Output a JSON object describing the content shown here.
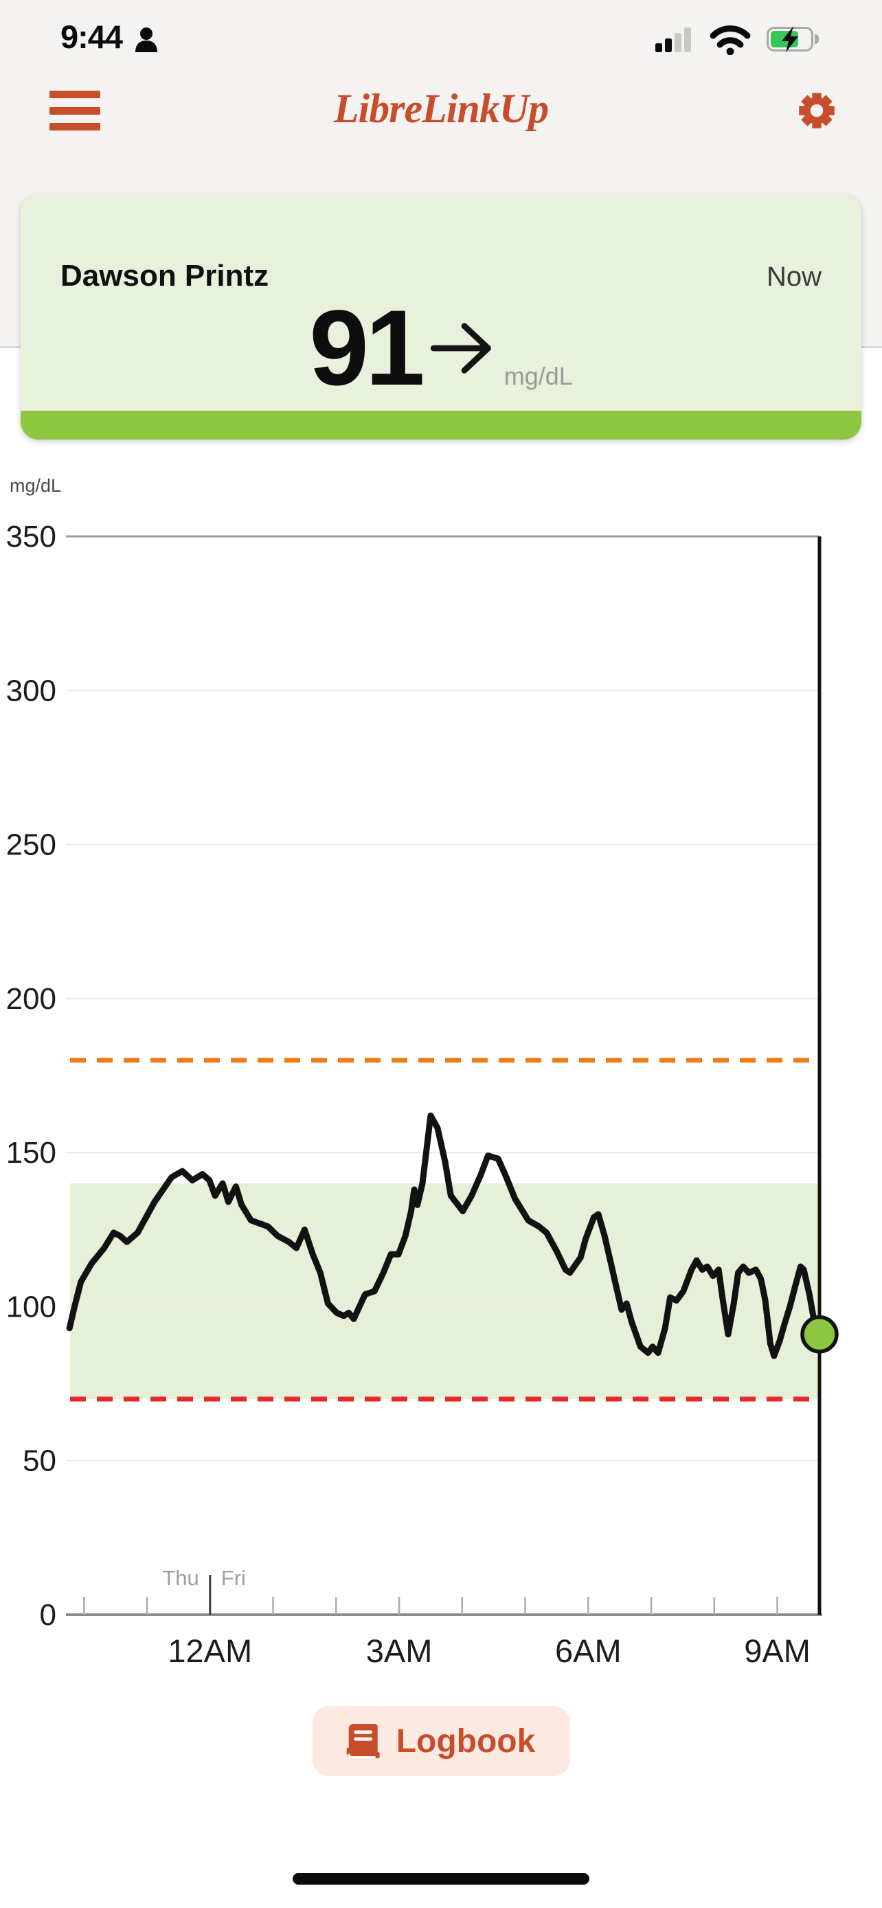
{
  "status_bar": {
    "time": "9:44",
    "signal_bars_filled": 2,
    "signal_bars_total": 4,
    "wifi": true,
    "battery_fill_percent": 72,
    "charging": true
  },
  "header": {
    "title": "LibreLinkUp"
  },
  "patient_card": {
    "name": "Dawson Printz",
    "timestamp_label": "Now",
    "glucose_value": "91",
    "glucose_unit": "mg/dL",
    "trend": "steady"
  },
  "chart_data": {
    "type": "line",
    "title": "12-hour glucose graph",
    "ylabel": "mg/dL",
    "ylim": [
      0,
      350
    ],
    "yticks": [
      0,
      50,
      100,
      150,
      200,
      250,
      300,
      350
    ],
    "grid": true,
    "legend_position": "none",
    "x_window_hours": 12,
    "x_ticks": [
      {
        "hour": 0.33
      },
      {
        "hour": 1.33
      },
      {
        "hour": 2.33,
        "label": "12AM",
        "day_boundary": true,
        "left_day": "Thu",
        "right_day": "Fri"
      },
      {
        "hour": 3.33
      },
      {
        "hour": 4.33
      },
      {
        "hour": 5.33,
        "label": "3AM"
      },
      {
        "hour": 6.33
      },
      {
        "hour": 7.33
      },
      {
        "hour": 8.33,
        "label": "6AM"
      },
      {
        "hour": 9.33
      },
      {
        "hour": 10.33
      },
      {
        "hour": 11.33,
        "label": "9AM"
      }
    ],
    "high_threshold": 180,
    "low_threshold": 70,
    "target_range": [
      70,
      140
    ],
    "now_line_hour": 12,
    "current": {
      "hour": 12,
      "value": 91
    },
    "series": [
      {
        "name": "glucose_mg_dl",
        "points": [
          [
            0.1,
            93
          ],
          [
            0.18,
            100
          ],
          [
            0.28,
            108
          ],
          [
            0.45,
            114
          ],
          [
            0.65,
            119
          ],
          [
            0.8,
            124
          ],
          [
            0.9,
            123
          ],
          [
            1.01,
            121
          ],
          [
            1.18,
            124
          ],
          [
            1.45,
            134
          ],
          [
            1.72,
            142
          ],
          [
            1.89,
            144
          ],
          [
            2.05,
            141
          ],
          [
            2.21,
            143
          ],
          [
            2.32,
            141
          ],
          [
            2.41,
            136
          ],
          [
            2.53,
            140
          ],
          [
            2.62,
            134
          ],
          [
            2.74,
            139
          ],
          [
            2.83,
            133
          ],
          [
            2.98,
            128
          ],
          [
            3.25,
            126
          ],
          [
            3.4,
            123
          ],
          [
            3.58,
            121
          ],
          [
            3.7,
            119
          ],
          [
            3.83,
            125
          ],
          [
            3.96,
            117
          ],
          [
            4.08,
            111
          ],
          [
            4.2,
            101
          ],
          [
            4.34,
            98
          ],
          [
            4.45,
            97
          ],
          [
            4.53,
            98
          ],
          [
            4.61,
            96
          ],
          [
            4.79,
            104
          ],
          [
            4.94,
            105
          ],
          [
            5.08,
            111
          ],
          [
            5.2,
            117
          ],
          [
            5.32,
            117
          ],
          [
            5.43,
            123
          ],
          [
            5.52,
            131
          ],
          [
            5.57,
            138
          ],
          [
            5.62,
            133
          ],
          [
            5.7,
            140
          ],
          [
            5.83,
            162
          ],
          [
            5.94,
            158
          ],
          [
            6.06,
            147
          ],
          [
            6.15,
            136
          ],
          [
            6.34,
            131
          ],
          [
            6.48,
            136
          ],
          [
            6.63,
            143
          ],
          [
            6.74,
            149
          ],
          [
            6.9,
            148
          ],
          [
            7.01,
            143
          ],
          [
            7.17,
            135
          ],
          [
            7.38,
            128
          ],
          [
            7.55,
            126
          ],
          [
            7.67,
            124
          ],
          [
            7.83,
            118
          ],
          [
            7.97,
            112
          ],
          [
            8.04,
            111
          ],
          [
            8.21,
            116
          ],
          [
            8.29,
            122
          ],
          [
            8.42,
            129
          ],
          [
            8.49,
            130
          ],
          [
            8.59,
            123
          ],
          [
            8.68,
            115
          ],
          [
            8.78,
            106
          ],
          [
            8.86,
            99
          ],
          [
            8.94,
            101
          ],
          [
            9.02,
            95
          ],
          [
            9.16,
            87
          ],
          [
            9.28,
            85
          ],
          [
            9.35,
            87
          ],
          [
            9.44,
            85
          ],
          [
            9.55,
            93
          ],
          [
            9.63,
            103
          ],
          [
            9.73,
            102
          ],
          [
            9.84,
            105
          ],
          [
            9.97,
            112
          ],
          [
            10.05,
            115
          ],
          [
            10.14,
            112
          ],
          [
            10.22,
            113
          ],
          [
            10.31,
            110
          ],
          [
            10.4,
            112
          ],
          [
            10.46,
            103
          ],
          [
            10.55,
            91
          ],
          [
            10.64,
            101
          ],
          [
            10.71,
            111
          ],
          [
            10.79,
            113
          ],
          [
            10.88,
            111
          ],
          [
            10.99,
            112
          ],
          [
            11.07,
            109
          ],
          [
            11.14,
            102
          ],
          [
            11.22,
            88
          ],
          [
            11.28,
            84
          ],
          [
            11.37,
            89
          ],
          [
            11.44,
            94
          ],
          [
            11.53,
            100
          ],
          [
            11.62,
            107
          ],
          [
            11.7,
            113
          ],
          [
            11.75,
            112
          ],
          [
            11.84,
            104
          ],
          [
            11.91,
            96
          ],
          [
            12.0,
            91
          ]
        ]
      }
    ]
  },
  "logbook": {
    "label": "Logbook"
  },
  "colors": {
    "accent": "#C84E2B",
    "brand_green": "#8DC63F",
    "card_bg": "#E8F1DB",
    "topbar_bg": "#F4F3F1",
    "logbook_bg": "#FBE9E2",
    "battery_green": "#34C759",
    "high_line": "#ED7D17",
    "low_line": "#E52A2A",
    "target_band": "#E6F0D8",
    "curve": "#121212",
    "grid_light": "#EBEBEB",
    "grid_dark": "#8C8C8C",
    "tick_gray": "#ABABAB",
    "day_label_gray": "#9E9E9E"
  }
}
